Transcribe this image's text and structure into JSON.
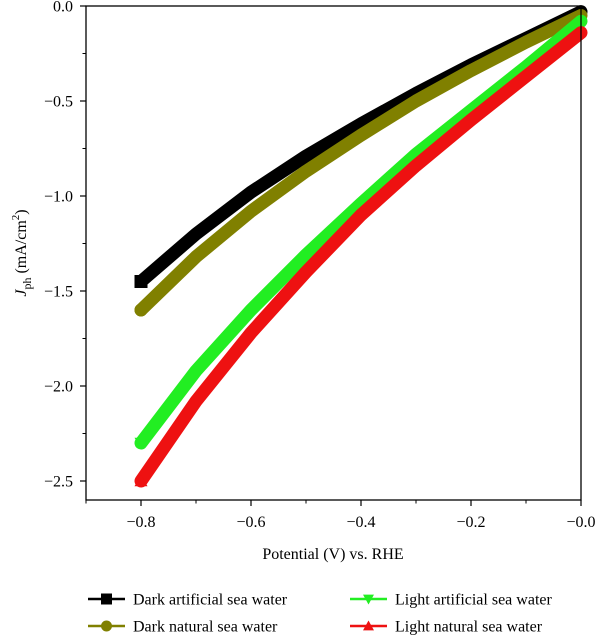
{
  "chart_data": {
    "type": "line",
    "xlabel": "Potential (V) vs. RHE",
    "ylabel": {
      "main": "J",
      "sub": "ph",
      "unit_prefix": " (mA/cm",
      "unit_sup": "2",
      "unit_suffix": ")"
    },
    "xlim": [
      -0.9,
      0.0
    ],
    "ylim": [
      -2.6,
      0.0
    ],
    "x_ticks": [
      -0.8,
      -0.6,
      -0.4,
      -0.2,
      0.0
    ],
    "x_tick_labels": [
      "−0.8",
      "−0.6",
      "−0.4",
      "−0.2",
      "−0.0"
    ],
    "y_ticks": [
      0.0,
      -0.5,
      -1.0,
      -1.5,
      -2.0,
      -2.5
    ],
    "y_tick_labels": [
      "0.0",
      "−0.5",
      "−1.0",
      "−1.5",
      "−2.0",
      "−2.5"
    ],
    "grid": false,
    "legend_position": "bottom",
    "series": [
      {
        "name": "Dark artificial sea water",
        "color": "#000000",
        "marker": "square",
        "x": [
          -0.8,
          -0.7,
          -0.6,
          -0.5,
          -0.4,
          -0.3,
          -0.2,
          -0.1,
          0.0
        ],
        "y": [
          -1.45,
          -1.2,
          -0.98,
          -0.79,
          -0.62,
          -0.46,
          -0.31,
          -0.17,
          -0.03
        ]
      },
      {
        "name": "Dark natural sea water",
        "color": "#808000",
        "marker": "circle",
        "x": [
          -0.8,
          -0.7,
          -0.6,
          -0.5,
          -0.4,
          -0.3,
          -0.2,
          -0.1,
          0.0
        ],
        "y": [
          -1.6,
          -1.32,
          -1.08,
          -0.87,
          -0.68,
          -0.5,
          -0.34,
          -0.19,
          -0.05
        ]
      },
      {
        "name": "Light artificial sea water",
        "color": "#22ee22",
        "marker": "triangle-down",
        "x": [
          -0.8,
          -0.7,
          -0.6,
          -0.5,
          -0.4,
          -0.3,
          -0.2,
          -0.1,
          0.0
        ],
        "y": [
          -2.3,
          -1.92,
          -1.6,
          -1.31,
          -1.04,
          -0.78,
          -0.55,
          -0.32,
          -0.08
        ]
      },
      {
        "name": "Light natural sea water",
        "color": "#ee1111",
        "marker": "triangle-up",
        "x": [
          -0.8,
          -0.7,
          -0.6,
          -0.5,
          -0.4,
          -0.3,
          -0.2,
          -0.1,
          0.0
        ],
        "y": [
          -2.5,
          -2.08,
          -1.72,
          -1.4,
          -1.1,
          -0.84,
          -0.6,
          -0.37,
          -0.14
        ]
      }
    ]
  }
}
